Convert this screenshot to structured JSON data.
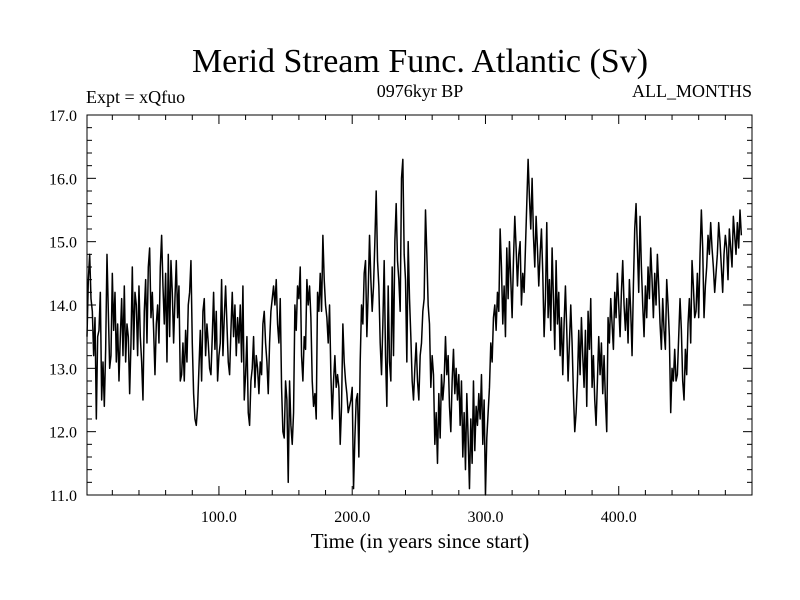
{
  "chart_data": {
    "type": "line",
    "title": "Merid Stream Func. Atlantic (Sv)",
    "subtitle_left": "Expt = xQfuo",
    "subtitle_center": "0976kyr BP",
    "subtitle_right": "ALL_MONTHS",
    "xlabel": "Time (in years since start)",
    "ylabel": "",
    "xlim": [
      1,
      500
    ],
    "ylim": [
      11.0,
      17.0
    ],
    "x_ticks": [
      100,
      200,
      300,
      400
    ],
    "x_tick_labels": [
      "100.0",
      "200.0",
      "300.0",
      "400.0"
    ],
    "y_ticks": [
      11,
      12,
      13,
      14,
      15,
      16,
      17
    ],
    "y_tick_labels": [
      "11.0",
      "12.0",
      "13.0",
      "14.0",
      "15.0",
      "16.0",
      "17.0"
    ],
    "grid": false,
    "x_start": 1,
    "x_step": 1,
    "series": [
      {
        "name": "Merid Stream Func. Atlantic",
        "color": "#000000",
        "values": [
          13.5,
          14.4,
          14.8,
          14.1,
          13.9,
          13.2,
          13.8,
          12.2,
          13.5,
          13.6,
          14.2,
          12.5,
          13.1,
          12.4,
          13.3,
          14.8,
          13.9,
          13.0,
          13.2,
          14.5,
          13.6,
          14.2,
          13.1,
          13.7,
          12.8,
          13.5,
          14.1,
          13.2,
          14.3,
          13.1,
          13.7,
          13.5,
          12.6,
          13.4,
          14.6,
          13.3,
          14.2,
          14.0,
          13.2,
          14.3,
          13.5,
          13.1,
          12.5,
          13.9,
          14.4,
          13.4,
          14.6,
          14.9,
          13.8,
          14.2,
          13.6,
          12.9,
          13.7,
          14.0,
          13.4,
          14.6,
          15.1,
          14.3,
          13.7,
          14.5,
          13.1,
          14.8,
          13.5,
          14.7,
          14.2,
          13.4,
          14.1,
          14.7,
          13.8,
          14.3,
          12.8,
          12.9,
          13.4,
          12.8,
          13.6,
          13.1,
          14.0,
          14.2,
          14.7,
          13.4,
          12.6,
          12.2,
          12.1,
          12.4,
          13.0,
          13.6,
          12.8,
          13.9,
          14.1,
          13.2,
          13.7,
          13.4,
          13.0,
          12.9,
          13.5,
          14.2,
          13.3,
          13.9,
          12.8,
          13.2,
          13.4,
          14.4,
          13.2,
          13.8,
          14.3,
          13.7,
          13.1,
          12.9,
          13.6,
          14.2,
          13.5,
          14.0,
          13.2,
          13.8,
          13.4,
          14.0,
          13.1,
          14.3,
          12.5,
          12.9,
          13.5,
          12.3,
          12.1,
          12.8,
          13.0,
          13.5,
          12.7,
          13.2,
          13.0,
          12.6,
          13.1,
          12.9,
          13.7,
          13.9,
          13.4,
          13.1,
          12.6,
          13.4,
          13.9,
          14.1,
          14.3,
          14.0,
          14.4,
          13.7,
          13.4,
          14.1,
          12.7,
          12.0,
          11.9,
          12.8,
          12.5,
          11.2,
          12.8,
          12.1,
          11.8,
          12.3,
          14.0,
          13.6,
          14.3,
          14.1,
          14.6,
          13.2,
          12.8,
          13.5,
          13.3,
          14.4,
          14.0,
          14.3,
          13.8,
          12.8,
          12.4,
          12.6,
          12.2,
          14.2,
          13.9,
          14.5,
          13.9,
          15.1,
          14.4,
          14.0,
          13.8,
          13.4,
          14.0,
          12.9,
          12.2,
          12.8,
          13.2,
          12.7,
          12.9,
          12.7,
          11.8,
          12.4,
          13.7,
          13.1,
          12.8,
          12.6,
          12.3,
          12.4,
          12.5,
          12.7,
          11.1,
          11.9,
          12.5,
          12.6,
          11.6,
          13.1,
          14.0,
          13.7,
          14.5,
          14.7,
          13.5,
          14.2,
          15.1,
          14.4,
          13.9,
          14.3,
          15.0,
          15.8,
          14.7,
          14.3,
          13.4,
          12.9,
          13.7,
          14.7,
          13.2,
          12.4,
          14.3,
          13.1,
          12.8,
          14.6,
          13.2,
          15.0,
          15.6,
          14.7,
          14.4,
          13.9,
          16.0,
          16.3,
          14.8,
          14.4,
          13.1,
          15.0,
          14.1,
          13.5,
          12.8,
          12.5,
          13.0,
          13.4,
          12.8,
          12.5,
          13.2,
          13.4,
          13.9,
          14.1,
          15.5,
          14.8,
          14.0,
          13.7,
          12.7,
          13.2,
          12.9,
          11.8,
          12.3,
          11.5,
          12.6,
          11.9,
          12.9,
          12.5,
          12.8,
          13.5,
          12.9,
          13.2,
          12.4,
          12.0,
          12.8,
          13.3,
          12.6,
          13.0,
          12.5,
          12.9,
          12.1,
          12.8,
          11.6,
          12.3,
          11.4,
          12.6,
          11.9,
          11.1,
          12.2,
          11.5,
          12.8,
          11.7,
          12.4,
          12.1,
          12.6,
          12.2,
          12.9,
          11.8,
          12.5,
          11.0,
          11.9,
          12.3,
          12.7,
          13.4,
          13.1,
          13.8,
          14.0,
          13.6,
          14.2,
          13.9,
          15.2,
          14.6,
          13.7,
          14.3,
          13.5,
          14.9,
          14.1,
          15.0,
          14.4,
          13.8,
          14.7,
          15.4,
          14.9,
          14.3,
          14.8,
          15.0,
          14.0,
          14.5,
          14.2,
          14.9,
          15.6,
          16.3,
          15.7,
          15.2,
          16.0,
          15.1,
          14.6,
          15.4,
          14.9,
          14.3,
          14.8,
          15.2,
          14.5,
          13.5,
          14.1,
          15.3,
          13.8,
          14.4,
          13.6,
          14.9,
          14.1,
          13.3,
          14.7,
          13.7,
          14.2,
          13.2,
          13.8,
          12.9,
          13.7,
          14.3,
          13.6,
          12.8,
          13.4,
          14.0,
          13.4,
          12.6,
          12.0,
          12.3,
          12.8,
          13.6,
          12.9,
          13.8,
          13.2,
          12.7,
          13.6,
          12.4,
          13.9,
          13.3,
          14.1,
          12.7,
          13.2,
          12.5,
          12.1,
          12.8,
          13.5,
          12.9,
          13.4,
          12.6,
          13.2,
          12.5,
          12.0,
          13.8,
          13.4,
          14.1,
          13.7,
          13.3,
          14.2,
          13.8,
          14.5,
          14.0,
          13.5,
          14.2,
          14.7,
          14.0,
          13.6,
          14.1,
          13.4,
          14.4,
          13.9,
          13.2,
          14.3,
          15.2,
          15.6,
          14.9,
          14.2,
          15.4,
          14.6,
          14.0,
          13.5,
          14.3,
          13.8,
          14.6,
          14.1,
          14.9,
          14.4,
          13.8,
          14.5,
          14.0,
          14.8,
          14.3,
          13.7,
          13.3,
          14.1,
          13.6,
          13.3,
          14.4,
          14.0,
          13.5,
          12.3,
          13.0,
          12.8,
          13.3,
          12.8,
          12.9,
          13.5,
          14.1,
          13.6,
          12.8,
          12.5,
          13.3,
          12.9,
          13.7,
          14.1,
          13.4,
          14.7,
          14.3,
          13.8,
          13.9,
          14.5,
          13.8,
          14.8,
          15.5,
          14.9,
          13.8,
          14.3,
          14.6,
          15.1,
          14.8,
          15.3,
          14.9,
          14.6,
          14.2,
          14.5,
          14.8,
          15.3,
          15.0,
          14.6,
          14.2,
          14.8,
          15.1,
          14.9,
          14.4,
          15.2,
          14.9,
          14.6,
          15.4,
          15.1,
          14.8,
          15.3,
          14.9,
          15.5,
          15.1
        ]
      }
    ]
  }
}
